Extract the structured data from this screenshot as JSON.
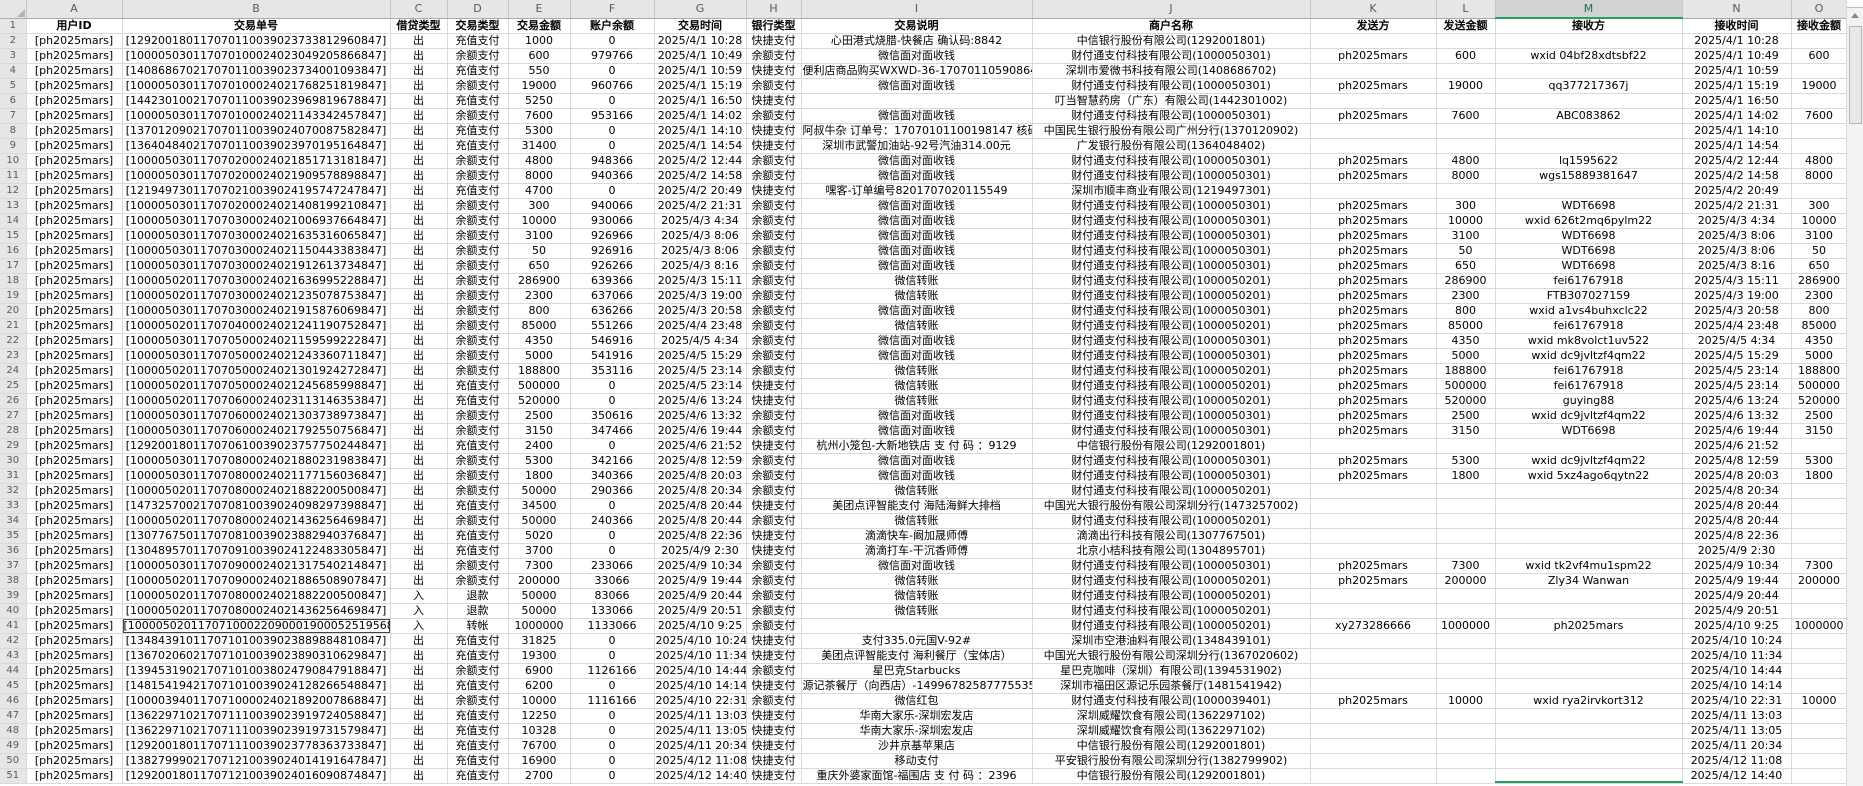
{
  "sheet": {
    "col_letters": [
      "A",
      "B",
      "C",
      "D",
      "E",
      "F",
      "G",
      "H",
      "I",
      "J",
      "K",
      "L",
      "M",
      "N",
      "O"
    ],
    "header_row": [
      "用户ID",
      "交易单号",
      "借贷类型",
      "交易类型",
      "交易金额",
      "账户余额",
      "交易时间",
      "银行类型",
      "交易说明",
      "商户名称",
      "发送方",
      "发送金额",
      "接收方",
      "接收时间",
      "接收金额"
    ],
    "selection": {
      "selected_column": "M",
      "boxed_cell": {
        "row": 41,
        "column": "B"
      }
    },
    "rows": [
      [
        "[ph2025mars]",
        "[129200180117070110039023733812960847]",
        "出",
        "充值支付",
        "1000",
        "0",
        "2025/4/1 10:28",
        "快捷支付",
        "心田港式烧腊-快餐店 确认码:8842",
        "中信银行股份有限公司(1292001801)",
        "",
        "",
        "",
        "2025/4/1 10:28",
        ""
      ],
      [
        "[ph2025mars]",
        "[100005030117070100024023049205866847]",
        "出",
        "余额支付",
        "600",
        "979766",
        "2025/4/1 10:49",
        "余额支付",
        "微信面对面收钱",
        "财付通支付科技有限公司(1000050301)",
        "ph2025mars",
        "600",
        "wxid 04bf28xdtsbf22",
        "2025/4/1 10:49",
        "600"
      ],
      [
        "[ph2025mars]",
        "[140868670217070110039023734001093847]",
        "出",
        "充值支付",
        "550",
        "0",
        "2025/4/1 10:59",
        "快捷支付",
        "便利店商品购买WXWD-36-17070110590864",
        "深圳市爱微书科技有限公司(1408686702)",
        "",
        "",
        "",
        "2025/4/1 10:59",
        ""
      ],
      [
        "[ph2025mars]",
        "[100005030117070100024021768251819847]",
        "出",
        "余额支付",
        "19000",
        "960766",
        "2025/4/1 15:19",
        "余额支付",
        "微信面对面收钱",
        "财付通支付科技有限公司(1000050301)",
        "ph2025mars",
        "19000",
        "qq377217367j",
        "2025/4/1 15:19",
        "19000"
      ],
      [
        "[ph2025mars]",
        "[144230100217070110039023969819678847]",
        "出",
        "充值支付",
        "5250",
        "0",
        "2025/4/1 16:50",
        "快捷支付",
        "",
        "叮当智慧药房（广东）有限公司(1442301002)",
        "",
        "",
        "",
        "2025/4/1 16:50",
        ""
      ],
      [
        "[ph2025mars]",
        "[100005030117070100024021143342457847]",
        "出",
        "余额支付",
        "7600",
        "953166",
        "2025/4/1 14:02",
        "余额支付",
        "微信面对面收钱",
        "财付通支付科技有限公司(1000050301)",
        "ph2025mars",
        "7600",
        "ABC083862",
        "2025/4/1 14:02",
        "7600"
      ],
      [
        "[ph2025mars]",
        "[137012090217070110039024070087582847]",
        "出",
        "充值支付",
        "5300",
        "0",
        "2025/4/1 14:10",
        "快捷支付",
        "阿叔牛杂 订单号：17070101100198147 核码",
        "中国民生银行股份有限公司广州分行(1370120902)",
        "",
        "",
        "",
        "2025/4/1 14:10",
        ""
      ],
      [
        "[ph2025mars]",
        "[136404840217070110039023970195164847]",
        "出",
        "充值支付",
        "31400",
        "0",
        "2025/4/1 14:54",
        "快捷支付",
        "深圳市武警加油站-92号汽油314.00元",
        "广发银行股份有限公司(1364048402)",
        "",
        "",
        "",
        "2025/4/1 14:54",
        ""
      ],
      [
        "[ph2025mars]",
        "[100005030117070200024021851713181847]",
        "出",
        "余额支付",
        "4800",
        "948366",
        "2025/4/2 12:44",
        "余额支付",
        "微信面对面收钱",
        "财付通支付科技有限公司(1000050301)",
        "ph2025mars",
        "4800",
        "lq1595622",
        "2025/4/2 12:44",
        "4800"
      ],
      [
        "[ph2025mars]",
        "[100005030117070200024021909578898847]",
        "出",
        "余额支付",
        "8000",
        "940366",
        "2025/4/2 14:58",
        "余额支付",
        "微信面对面收钱",
        "财付通支付科技有限公司(1000050301)",
        "ph2025mars",
        "8000",
        "wgs15889381647",
        "2025/4/2 14:58",
        "8000"
      ],
      [
        "[ph2025mars]",
        "[121949730117070210039024195747247847]",
        "出",
        "充值支付",
        "4700",
        "0",
        "2025/4/2 20:49",
        "快捷支付",
        "嘿客-订单编号8201707020115549",
        "深圳市顺丰商业有限公司(1219497301)",
        "",
        "",
        "",
        "2025/4/2 20:49",
        ""
      ],
      [
        "[ph2025mars]",
        "[100005030117070200024021408199210847]",
        "出",
        "余额支付",
        "300",
        "940066",
        "2025/4/2 21:31",
        "余额支付",
        "微信面对面收钱",
        "财付通支付科技有限公司(1000050301)",
        "ph2025mars",
        "300",
        "WDT6698",
        "2025/4/2 21:31",
        "300"
      ],
      [
        "[ph2025mars]",
        "[100005030117070300024021006937664847]",
        "出",
        "余额支付",
        "10000",
        "930066",
        "2025/4/3 4:34",
        "余额支付",
        "微信面对面收钱",
        "财付通支付科技有限公司(1000050301)",
        "ph2025mars",
        "10000",
        "wxid 626t2mq6pylm22",
        "2025/4/3 4:34",
        "10000"
      ],
      [
        "[ph2025mars]",
        "[100005030117070300024021635316065847]",
        "出",
        "余额支付",
        "3100",
        "926966",
        "2025/4/3 8:06",
        "余额支付",
        "微信面对面收钱",
        "财付通支付科技有限公司(1000050301)",
        "ph2025mars",
        "3100",
        "WDT6698",
        "2025/4/3 8:06",
        "3100"
      ],
      [
        "[ph2025mars]",
        "[100005030117070300024021150443383847]",
        "出",
        "余额支付",
        "50",
        "926916",
        "2025/4/3 8:06",
        "余额支付",
        "微信面对面收钱",
        "财付通支付科技有限公司(1000050301)",
        "ph2025mars",
        "50",
        "WDT6698",
        "2025/4/3 8:06",
        "50"
      ],
      [
        "[ph2025mars]",
        "[100005030117070300024021912613734847]",
        "出",
        "余额支付",
        "650",
        "926266",
        "2025/4/3 8:16",
        "余额支付",
        "微信面对面收钱",
        "财付通支付科技有限公司(1000050301)",
        "ph2025mars",
        "650",
        "WDT6698",
        "2025/4/3 8:16",
        "650"
      ],
      [
        "[ph2025mars]",
        "[100005020117070300024021636995228847]",
        "出",
        "余额支付",
        "286900",
        "639366",
        "2025/4/3 15:11",
        "余额支付",
        "微信转账",
        "财付通支付科技有限公司(1000050201)",
        "ph2025mars",
        "286900",
        "fei61767918",
        "2025/4/3 15:11",
        "286900"
      ],
      [
        "[ph2025mars]",
        "[100005020117070300024021235078753847]",
        "出",
        "余额支付",
        "2300",
        "637066",
        "2025/4/3 19:00",
        "余额支付",
        "微信转账",
        "财付通支付科技有限公司(1000050201)",
        "ph2025mars",
        "2300",
        "FTB307027159",
        "2025/4/3 19:00",
        "2300"
      ],
      [
        "[ph2025mars]",
        "[100005030117070300024021915876069847]",
        "出",
        "余额支付",
        "800",
        "636266",
        "2025/4/3 20:58",
        "余额支付",
        "微信面对面收钱",
        "财付通支付科技有限公司(1000050301)",
        "ph2025mars",
        "800",
        "wxid a1vs4buhxclc22",
        "2025/4/3 20:58",
        "800"
      ],
      [
        "[ph2025mars]",
        "[100005020117070400024021241190752847]",
        "出",
        "余额支付",
        "85000",
        "551266",
        "2025/4/4 23:48",
        "余额支付",
        "微信转账",
        "财付通支付科技有限公司(1000050201)",
        "ph2025mars",
        "85000",
        "fei61767918",
        "2025/4/4 23:48",
        "85000"
      ],
      [
        "[ph2025mars]",
        "[100005030117070500024021159599222847]",
        "出",
        "余额支付",
        "4350",
        "546916",
        "2025/4/5 4:34",
        "余额支付",
        "微信面对面收钱",
        "财付通支付科技有限公司(1000050301)",
        "ph2025mars",
        "4350",
        "wxid mk8volct1uv522",
        "2025/4/5 4:34",
        "4350"
      ],
      [
        "[ph2025mars]",
        "[100005030117070500024021243360711847]",
        "出",
        "余额支付",
        "5000",
        "541916",
        "2025/4/5 15:29",
        "余额支付",
        "微信面对面收钱",
        "财付通支付科技有限公司(1000050301)",
        "ph2025mars",
        "5000",
        "wxid dc9jvltzf4qm22",
        "2025/4/5 15:29",
        "5000"
      ],
      [
        "[ph2025mars]",
        "[100005020117070500024021301924272847]",
        "出",
        "余额支付",
        "188800",
        "353116",
        "2025/4/5 23:14",
        "余额支付",
        "微信转账",
        "财付通支付科技有限公司(1000050201)",
        "ph2025mars",
        "188800",
        "fei61767918",
        "2025/4/5 23:14",
        "188800"
      ],
      [
        "[ph2025mars]",
        "[100005020117070500024021245685998847]",
        "出",
        "充值支付",
        "500000",
        "0",
        "2025/4/5 23:14",
        "快捷支付",
        "微信转账",
        "财付通支付科技有限公司(1000050201)",
        "ph2025mars",
        "500000",
        "fei61767918",
        "2025/4/5 23:14",
        "500000"
      ],
      [
        "[ph2025mars]",
        "[100005020117070600024023113146353847]",
        "出",
        "充值支付",
        "520000",
        "0",
        "2025/4/6 13:24",
        "快捷支付",
        "微信转账",
        "财付通支付科技有限公司(1000050201)",
        "ph2025mars",
        "520000",
        "guying88",
        "2025/4/6 13:24",
        "520000"
      ],
      [
        "[ph2025mars]",
        "[100005030117070600024021303738973847]",
        "出",
        "余额支付",
        "2500",
        "350616",
        "2025/4/6 13:32",
        "余额支付",
        "微信面对面收钱",
        "财付通支付科技有限公司(1000050301)",
        "ph2025mars",
        "2500",
        "wxid dc9jvltzf4qm22",
        "2025/4/6 13:32",
        "2500"
      ],
      [
        "[ph2025mars]",
        "[100005030117070600024021792550756847]",
        "出",
        "余额支付",
        "3150",
        "347466",
        "2025/4/6 19:44",
        "余额支付",
        "微信面对面收钱",
        "财付通支付科技有限公司(1000050301)",
        "ph2025mars",
        "3150",
        "WDT6698",
        "2025/4/6 19:44",
        "3150"
      ],
      [
        "[ph2025mars]",
        "[129200180117070610039023757750244847]",
        "出",
        "充值支付",
        "2400",
        "0",
        "2025/4/6 21:52",
        "快捷支付",
        "杭州小笼包-大新地铁店 支 付 码 ：9129",
        "中信银行股份有限公司(1292001801)",
        "",
        "",
        "",
        "2025/4/6 21:52",
        ""
      ],
      [
        "[ph2025mars]",
        "[100005030117070800024021880231983847]",
        "出",
        "余额支付",
        "5300",
        "342166",
        "2025/4/8 12:59",
        "余额支付",
        "微信面对面收钱",
        "财付通支付科技有限公司(1000050301)",
        "ph2025mars",
        "5300",
        "wxid dc9jvltzf4qm22",
        "2025/4/8 12:59",
        "5300"
      ],
      [
        "[ph2025mars]",
        "[100005030117070800024021177156036847]",
        "出",
        "余额支付",
        "1800",
        "340366",
        "2025/4/8 20:03",
        "余额支付",
        "微信面对面收钱",
        "财付通支付科技有限公司(1000050301)",
        "ph2025mars",
        "1800",
        "wxid 5xz4ago6qytn22",
        "2025/4/8 20:03",
        "1800"
      ],
      [
        "[ph2025mars]",
        "[100005020117070800024021882200500847]",
        "出",
        "余额支付",
        "50000",
        "290366",
        "2025/4/8 20:34",
        "余额支付",
        "微信转账",
        "财付通支付科技有限公司(1000050201)",
        "",
        "",
        "",
        "2025/4/8 20:34",
        ""
      ],
      [
        "[ph2025mars]",
        "[147325700217070810039024098297398847]",
        "出",
        "充值支付",
        "34500",
        "0",
        "2025/4/8 20:44",
        "快捷支付",
        "美团点评智能支付 海陆海鲜大排档",
        "中国光大银行股份有限公司深圳分行(1473257002)",
        "",
        "",
        "",
        "2025/4/8 20:44",
        ""
      ],
      [
        "[ph2025mars]",
        "[100005020117070800024021436256469847]",
        "出",
        "余额支付",
        "50000",
        "240366",
        "2025/4/8 20:44",
        "余额支付",
        "微信转账",
        "财付通支付科技有限公司(1000050201)",
        "",
        "",
        "",
        "2025/4/8 20:44",
        ""
      ],
      [
        "[ph2025mars]",
        "[130776750117070810039023882940376847]",
        "出",
        "充值支付",
        "5020",
        "0",
        "2025/4/8 22:36",
        "快捷支付",
        "滴滴快车-阚加晟师傅",
        "滴滴出行科技有限公司(1307767501)",
        "",
        "",
        "",
        "2025/4/8 22:36",
        ""
      ],
      [
        "[ph2025mars]",
        "[130489570117070910039024122483305847]",
        "出",
        "充值支付",
        "3700",
        "0",
        "2025/4/9 2:30",
        "快捷支付",
        "滴滴打车-干沉香师傅",
        "北京小桔科技有限公司(1304895701)",
        "",
        "",
        "",
        "2025/4/9 2:30",
        ""
      ],
      [
        "[ph2025mars]",
        "[100005030117070900024021317540214847]",
        "出",
        "余额支付",
        "7300",
        "233066",
        "2025/4/9 10:34",
        "余额支付",
        "微信面对面收钱",
        "财付通支付科技有限公司(1000050301)",
        "ph2025mars",
        "7300",
        "wxid tk2vf4mu1spm22",
        "2025/4/9 10:34",
        "7300"
      ],
      [
        "[ph2025mars]",
        "[100005020117070900024021886508907847]",
        "出",
        "余额支付",
        "200000",
        "33066",
        "2025/4/9 19:44",
        "余额支付",
        "微信转账",
        "财付通支付科技有限公司(1000050201)",
        "ph2025mars",
        "200000",
        "Zly34 Wanwan",
        "2025/4/9 19:44",
        "200000"
      ],
      [
        "[ph2025mars]",
        "[100005020117070800024021882200500847]",
        "入",
        "退款",
        "50000",
        "83066",
        "2025/4/9 20:44",
        "余额支付",
        "微信转账",
        "财付通支付科技有限公司(1000050201)",
        "",
        "",
        "",
        "2025/4/9 20:44",
        ""
      ],
      [
        "[ph2025mars]",
        "[100005020117070800024021436256469847]",
        "入",
        "退款",
        "50000",
        "133066",
        "2025/4/9 20:51",
        "余额支付",
        "微信转账",
        "财付通支付科技有限公司(1000050201)",
        "",
        "",
        "",
        "2025/4/9 20:51",
        ""
      ],
      [
        "[ph2025mars]",
        "[1000050201170710002209000190005251956847]",
        "入",
        "转帐",
        "1000000",
        "1133066",
        "2025/4/10 9:25",
        "余额支付",
        "",
        "财付通支付科技有限公司(1000050201)",
        "xy273286666",
        "1000000",
        "ph2025mars",
        "2025/4/10 9:25",
        "1000000"
      ],
      [
        "[ph2025mars]",
        "[134843910117071010039023889884810847]",
        "出",
        "充值支付",
        "31825",
        "0",
        "2025/4/10 10:24",
        "快捷支付",
        "支付335.0元国V-92#",
        "深圳市空港油料有限公司(1348439101)",
        "",
        "",
        "",
        "2025/4/10 10:24",
        ""
      ],
      [
        "[ph2025mars]",
        "[136702060217071010039023890310629847]",
        "出",
        "充值支付",
        "19300",
        "0",
        "2025/4/10 11:34",
        "快捷支付",
        "美团点评智能支付 海利餐厅（宝体店）",
        "中国光大银行股份有限公司深圳分行(1367020602)",
        "",
        "",
        "",
        "2025/4/10 11:34",
        ""
      ],
      [
        "[ph2025mars]",
        "[139453190217071010038024790847918847]",
        "出",
        "余额支付",
        "6900",
        "1126166",
        "2025/4/10 14:44",
        "余额支付",
        "星巴克Starbucks",
        "星巴克咖啡（深圳）有限公司(1394531902)",
        "",
        "",
        "",
        "2025/4/10 14:44",
        ""
      ],
      [
        "[ph2025mars]",
        "[148154194217071010039024128266548847]",
        "出",
        "充值支付",
        "6200",
        "0",
        "2025/4/10 14:14",
        "快捷支付",
        "源记茶餐厅（向西店）-149967825877755352",
        "深圳市福田区源记乐园茶餐厅(1481541942)",
        "",
        "",
        "",
        "2025/4/10 14:14",
        ""
      ],
      [
        "[ph2025mars]",
        "[100003940117071000024021892007868847]",
        "出",
        "余额支付",
        "10000",
        "1116166",
        "2025/4/10 22:31",
        "余额支付",
        "微信红包",
        "财付通支付科技有限公司(1000039401)",
        "ph2025mars",
        "10000",
        "wxid rya2irvkort312",
        "2025/4/10 22:31",
        "10000"
      ],
      [
        "[ph2025mars]",
        "[136229710217071110039023919724058847]",
        "出",
        "充值支付",
        "12250",
        "0",
        "2025/4/11 13:03",
        "快捷支付",
        "华南大家乐-深圳宏发店",
        "深圳威耀饮食有限公司(1362297102)",
        "",
        "",
        "",
        "2025/4/11 13:03",
        ""
      ],
      [
        "[ph2025mars]",
        "[136229710217071110039023919731579847]",
        "出",
        "充值支付",
        "10328",
        "0",
        "2025/4/11 13:05",
        "快捷支付",
        "华南大家乐-深圳宏发店",
        "深圳威耀饮食有限公司(1362297102)",
        "",
        "",
        "",
        "2025/4/11 13:05",
        ""
      ],
      [
        "[ph2025mars]",
        "[129200180117071110039023778363733847]",
        "出",
        "充值支付",
        "76700",
        "0",
        "2025/4/11 20:34",
        "快捷支付",
        "沙井京基苹果店",
        "中信银行股份有限公司(1292001801)",
        "",
        "",
        "",
        "2025/4/11 20:34",
        ""
      ],
      [
        "[ph2025mars]",
        "[138279990217071210039024014191647847]",
        "出",
        "充值支付",
        "16900",
        "0",
        "2025/4/12 11:08",
        "快捷支付",
        "移动支付",
        "平安银行股份有限公司深圳分行(1382799902)",
        "",
        "",
        "",
        "2025/4/12 11:08",
        ""
      ],
      [
        "[ph2025mars]",
        "[129200180117071210039024016090874847]",
        "出",
        "充值支付",
        "2700",
        "0",
        "2025/4/12 14:40",
        "快捷支付",
        "重庆外婆家面馆-福围店 支 付 码 ：2396",
        "中信银行股份有限公司(1292001801)",
        "",
        "",
        "",
        "2025/4/12 14:40",
        ""
      ]
    ]
  }
}
